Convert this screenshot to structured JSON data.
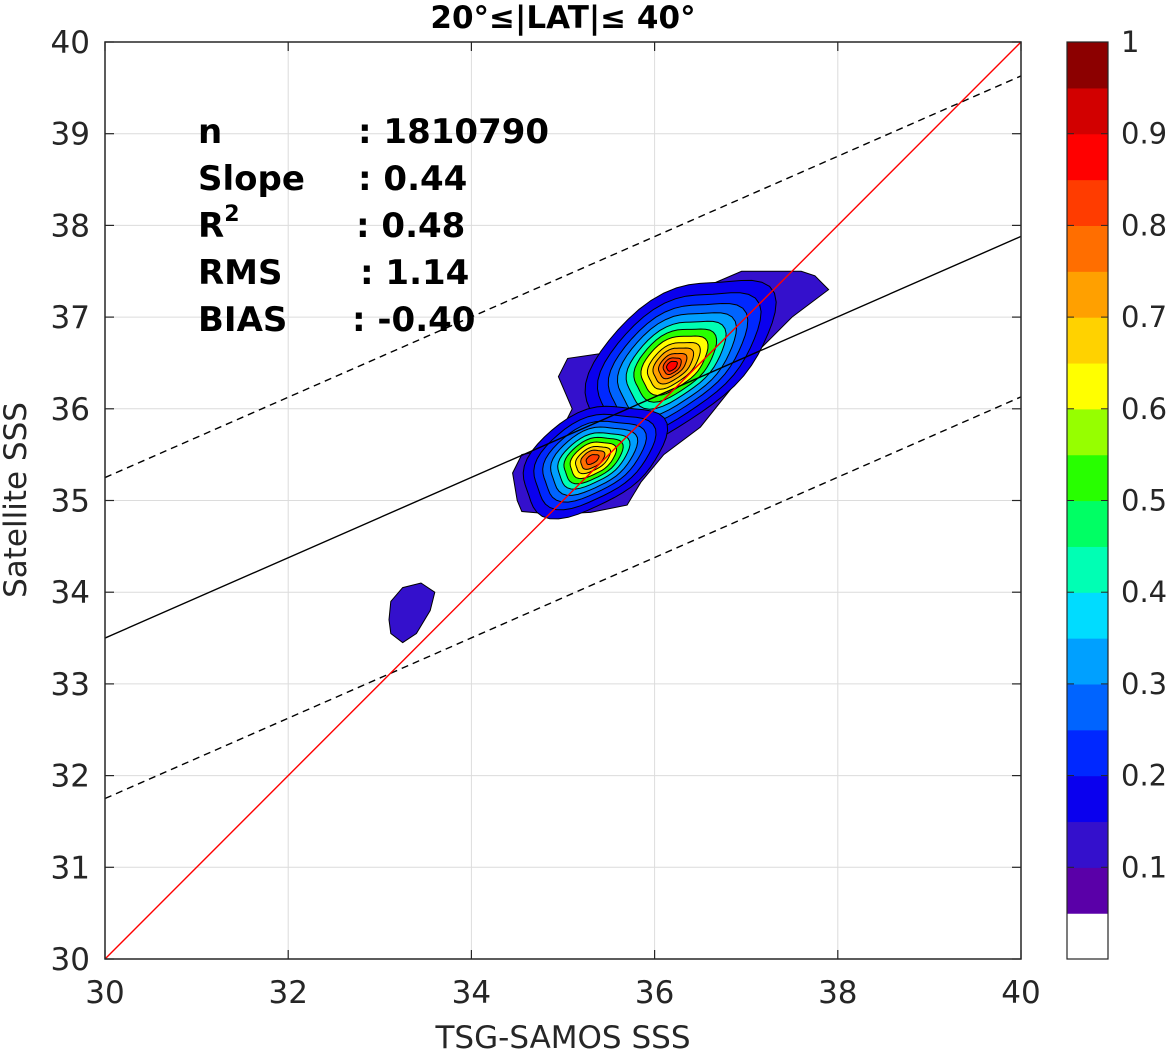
{
  "chart_data": {
    "type": "contour",
    "title": "20°≤|LAT|≤ 40°",
    "xlabel": "TSG-SAMOS SSS",
    "ylabel": "Satellite SSS",
    "xlim": [
      30,
      40
    ],
    "ylim": [
      30,
      40
    ],
    "xticks": [
      "30",
      "32",
      "34",
      "36",
      "38",
      "40"
    ],
    "yticks": [
      "30",
      "31",
      "32",
      "33",
      "34",
      "35",
      "36",
      "37",
      "38",
      "39",
      "40"
    ],
    "grid": true,
    "stats": [
      {
        "label": "n",
        "sep": ":",
        "value": "1810790"
      },
      {
        "label": "Slope",
        "sep": ":",
        "value": "0.44"
      },
      {
        "label": "R",
        "sup": "2",
        "sep": ":",
        "value": "0.48"
      },
      {
        "label": "RMS",
        "sep": ":",
        "value": "1.14"
      },
      {
        "label": "BIAS",
        "sep": ":",
        "value": "-0.40"
      }
    ],
    "lines": {
      "one_to_one": {
        "color": "#ff0000",
        "x": [
          30,
          40
        ],
        "y": [
          30,
          40
        ]
      },
      "regression": {
        "color": "#000000",
        "style": "solid",
        "x": [
          30,
          40
        ],
        "y": [
          33.5,
          37.88
        ]
      },
      "upper_bound": {
        "color": "#000000",
        "style": "dashed",
        "x": [
          30,
          40
        ],
        "y": [
          35.25,
          39.63
        ]
      },
      "lower_bound": {
        "color": "#000000",
        "style": "dashed",
        "x": [
          30,
          40
        ],
        "y": [
          31.75,
          36.13
        ]
      }
    },
    "density_peaks": [
      {
        "x": 36.3,
        "y": 36.7,
        "value": 0.85
      },
      {
        "x": 35.35,
        "y": 35.45,
        "value": 0.8
      }
    ],
    "colorbar": {
      "ticks": [
        "0.1",
        "0.2",
        "0.3",
        "0.4",
        "0.5",
        "0.6",
        "0.7",
        "0.8",
        "0.9",
        "1"
      ],
      "colors": [
        "#ffffff",
        "#5a00a8",
        "#3410cc",
        "#0a00ee",
        "#0028ff",
        "#0064ff",
        "#00a0ff",
        "#00dcff",
        "#00ffb4",
        "#00ff64",
        "#28ff00",
        "#96ff00",
        "#ffff00",
        "#ffd200",
        "#ffa000",
        "#ff6e00",
        "#ff3c00",
        "#ff0000",
        "#d20000",
        "#8c0000"
      ]
    }
  }
}
